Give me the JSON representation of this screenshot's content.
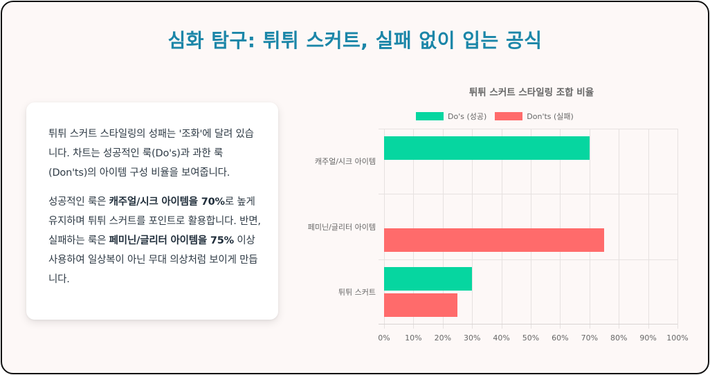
{
  "page": {
    "title": "심화 탐구: 튀튀 스커트, 실패 없이 입는 공식"
  },
  "card": {
    "paragraph1": "튀튀 스커트 스타일링의 성패는 '조화'에 달려 있습니다. 차트는 성공적인 룩(Do's)과 과한 룩(Don'ts)의 아이템 구성 비율을 보여줍니다.",
    "paragraph2": {
      "part1": "성공적인 룩은 ",
      "bold1": "캐주얼/시크 아이템을 70%",
      "part2": "로 높게 유지하며 튀튀 스커트를 포인트로 활용합니다. 반면, 실패하는 룩은 ",
      "bold2": "페미닌/글리터 아이템을 75%",
      "part3": " 이상 사용하여 일상복이 아닌 무대 의상처럼 보이게 만듭니다."
    }
  },
  "colors": {
    "title": "#1b86a8",
    "dos": "#06d6a0",
    "donts": "#ff6b6b"
  },
  "chart_data": {
    "type": "bar",
    "orientation": "horizontal",
    "title": "튀튀 스커트 스타일링 조합 비율",
    "categories": [
      "캐주얼/시크 아이템",
      "페미닌/글리터 아이템",
      "튀튀 스커트"
    ],
    "series": [
      {
        "name": "Do's (성공)",
        "color": "#06d6a0",
        "values": [
          70,
          0,
          30
        ]
      },
      {
        "name": "Don'ts (실패)",
        "color": "#ff6b6b",
        "values": [
          0,
          75,
          25
        ]
      }
    ],
    "xlabel": "",
    "ylabel": "",
    "xlim": [
      0,
      100
    ],
    "xticks": [
      "0%",
      "10%",
      "20%",
      "30%",
      "40%",
      "50%",
      "60%",
      "70%",
      "80%",
      "90%",
      "100%"
    ],
    "grid": true,
    "legend_position": "top"
  }
}
